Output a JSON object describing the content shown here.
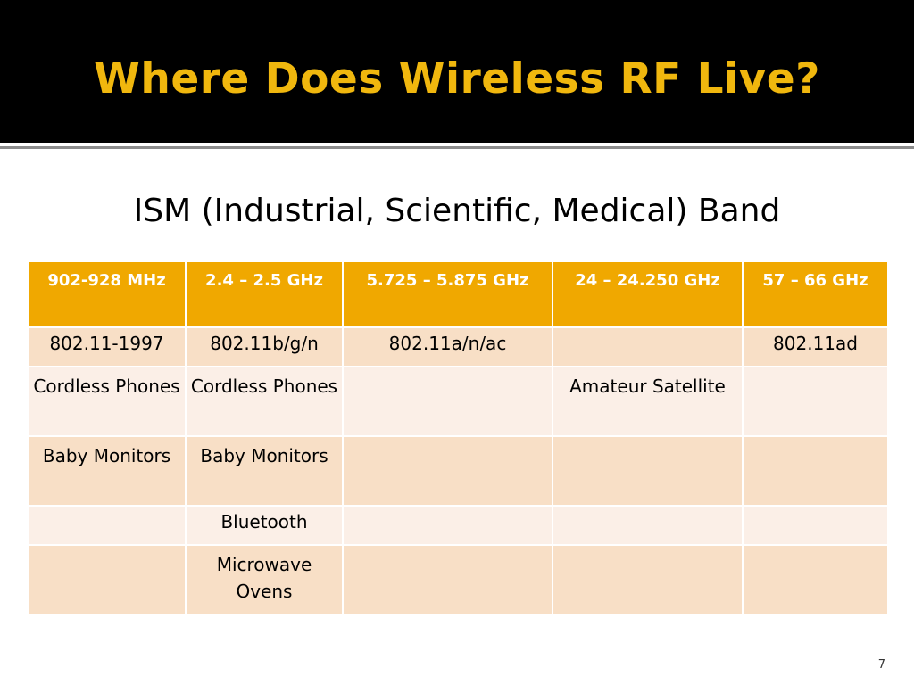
{
  "slide": {
    "title": "Where Does Wireless RF Live?",
    "subtitle": "ISM (Industrial, Scientific, Medical) Band",
    "page_number": "7"
  },
  "table": {
    "headers": [
      "902-928 MHz",
      "2.4 – 2.5 GHz",
      "5.725 – 5.875 GHz",
      "24 – 24.250 GHz",
      "57 – 66 GHz"
    ],
    "rows": [
      [
        "802.11-1997",
        "802.11b/g/n",
        "802.11a/n/ac",
        "",
        "802.11ad"
      ],
      [
        "Cordless Phones",
        "Cordless Phones",
        "",
        "Amateur Satellite",
        ""
      ],
      [
        "Baby Monitors",
        "Baby Monitors",
        "",
        "",
        ""
      ],
      [
        "",
        "Bluetooth",
        "",
        "",
        ""
      ],
      [
        "",
        "Microwave Ovens",
        "",
        "",
        ""
      ]
    ]
  },
  "colors": {
    "title_bar": "#000000",
    "title_text": "#f0b70e",
    "header_fill": "#f0a800",
    "row_odd": "#f8dfc6",
    "row_even": "#fbefe7"
  }
}
